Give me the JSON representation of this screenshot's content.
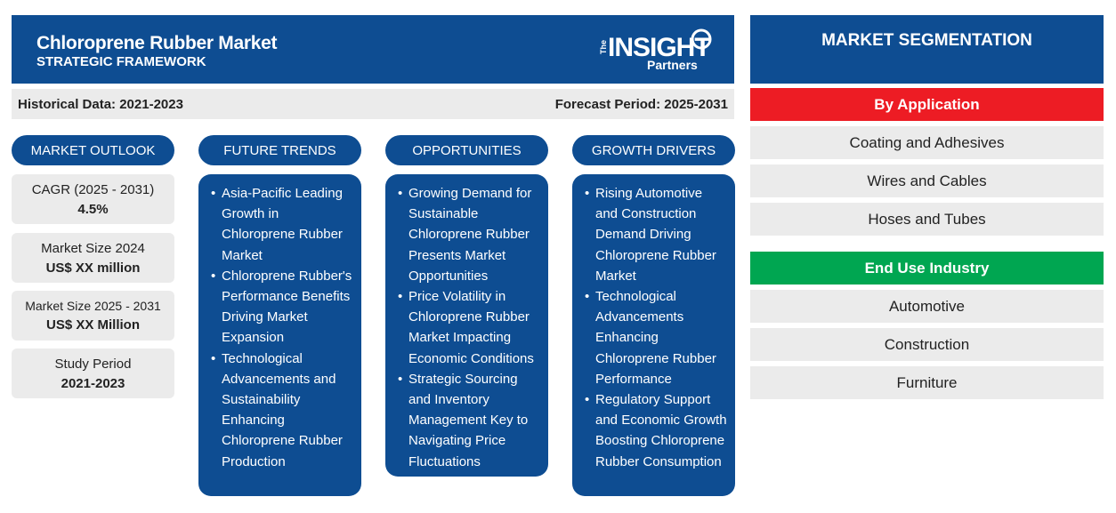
{
  "header": {
    "title": "Chloroprene Rubber Market",
    "subtitle": "STRATEGIC FRAMEWORK",
    "logo": {
      "the": "The",
      "insight": "INSIGHT",
      "partners": "Partners"
    }
  },
  "periods": {
    "historical": "Historical Data: 2021-2023",
    "forecast": "Forecast Period: 2025-2031"
  },
  "columns": {
    "outlook": "MARKET OUTLOOK",
    "trends": "FUTURE TRENDS",
    "opportunities": "OPPORTUNITIES",
    "drivers": "GROWTH DRIVERS"
  },
  "outlook_stats": [
    {
      "label": "CAGR (2025 - 2031)",
      "value": "4.5%"
    },
    {
      "label": "Market Size 2024",
      "value": "US$ XX million"
    },
    {
      "label": "Market Size 2025 - 2031",
      "value": "US$ XX Million"
    },
    {
      "label": "Study Period",
      "value": "2021-2023"
    }
  ],
  "future_trends": [
    "Asia-Pacific Leading Growth in Chloroprene Rubber Market",
    "Chloroprene Rubber's Performance Benefits Driving Market Expansion",
    "Technological Advancements and Sustainability Enhancing Chloroprene Rubber Production"
  ],
  "opportunities": [
    "Growing Demand for Sustainable Chloroprene Rubber Presents Market Opportunities",
    "Price Volatility in Chloroprene Rubber Market Impacting Economic Conditions",
    "Strategic Sourcing and Inventory Management Key to Navigating Price Fluctuations"
  ],
  "growth_drivers": [
    "Rising Automotive and Construction Demand Driving Chloroprene Rubber Market",
    "Technological Advancements Enhancing Chloroprene Rubber Performance",
    "Regulatory Support and Economic Growth Boosting Chloroprene Rubber Consumption"
  ],
  "segmentation": {
    "title": "MARKET SEGMENTATION",
    "application": {
      "label": "By Application",
      "color": "#ed1c24",
      "items": [
        "Coating and Adhesives",
        "Wires and Cables",
        "Hoses and Tubes"
      ]
    },
    "end_use": {
      "label": "End Use Industry",
      "color": "#00a651",
      "items": [
        "Automotive",
        "Construction",
        "Furniture"
      ]
    }
  },
  "colors": {
    "primary": "#0e4d92",
    "light_gray": "#ebebeb"
  }
}
